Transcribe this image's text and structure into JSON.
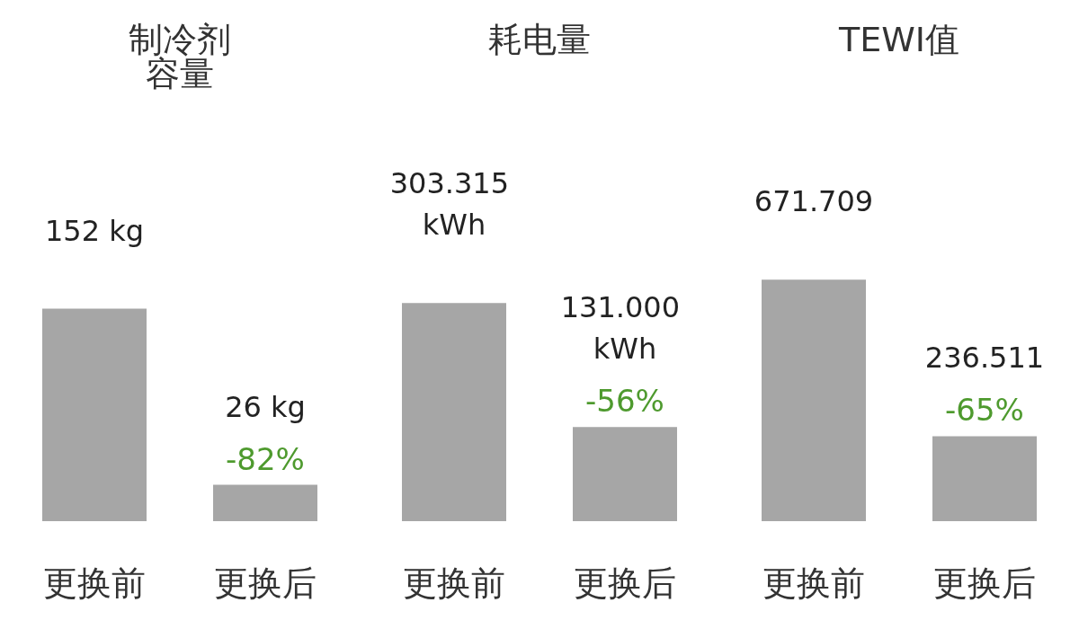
{
  "chart_data": [
    {
      "type": "bar",
      "title": "制冷剂容量",
      "categories": [
        "更换前",
        "更换后"
      ],
      "series": [
        {
          "color": "#a6a6a6",
          "values": [
            152,
            26
          ],
          "value_labels": [
            "152 kg",
            "26 kg"
          ]
        }
      ],
      "annotations": [
        {
          "text": "-82%",
          "x": "更换后",
          "y": 26
        }
      ],
      "tick_labels": "x",
      "grid": false
    },
    {
      "type": "bar",
      "title": "耗电量",
      "categories": [
        "更换前",
        "更换后"
      ],
      "series": [
        {
          "color": "#a6a6a6",
          "values": [
            303.315,
            131.0
          ],
          "value_labels": [
            "303.315 kWh",
            "131.000 kWh"
          ]
        }
      ],
      "annotations": [
        {
          "text": "-56%",
          "x": "更换后",
          "y": 131.0
        }
      ],
      "tick_labels": "x",
      "grid": false
    },
    {
      "type": "bar",
      "title": "TEWI值",
      "categories": [
        "更换前",
        "更换后"
      ],
      "series": [
        {
          "color": "#a6a6a6",
          "values": [
            671.709,
            236.511
          ],
          "value_labels": [
            "671.709",
            "236.511"
          ]
        }
      ],
      "annotations": [
        {
          "text": "-65%",
          "x": "更换后",
          "y": 236.511
        }
      ],
      "tick_labels": "x",
      "grid": false
    }
  ]
}
